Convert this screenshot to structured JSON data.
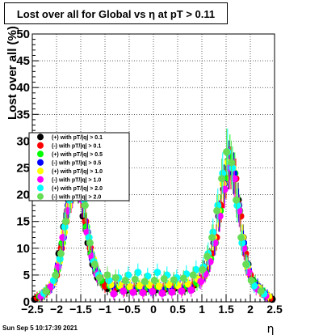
{
  "title": "Lost over all for Global vs    η at pT > 0.11",
  "timestamp": "Sun Sep  5 10:17:39 2021",
  "chart_data": {
    "type": "scatter",
    "title": "Lost over all for Global vs    η at pT > 0.11",
    "xlabel": "η",
    "ylabel": "Lost over all (%)",
    "xlim": [
      -2.5,
      2.5
    ],
    "ylim": [
      0,
      50
    ],
    "x_ticks": [
      "−2.5",
      "−2",
      "−1.5",
      "−1",
      "−0.5",
      "0",
      "0.5",
      "1",
      "1.5",
      "2",
      "2.5"
    ],
    "y_ticks": [
      "0",
      "5",
      "10",
      "15",
      "20",
      "25",
      "30",
      "35",
      "40",
      "45",
      "50"
    ],
    "grid": true,
    "legend_position": "middle-left",
    "series": [
      {
        "name": "(+) with pT/|q| > 0.1",
        "color": "#000000",
        "x": [
          -2.45,
          -2.25,
          -2.05,
          -1.95,
          -1.85,
          -1.75,
          -1.65,
          -1.55,
          -1.45,
          -1.35,
          -1.25,
          -1.15,
          -1.05,
          -0.95,
          -0.75,
          -0.55,
          -0.35,
          -0.15,
          0.05,
          0.25,
          0.45,
          0.65,
          0.85,
          0.95,
          1.05,
          1.15,
          1.25,
          1.35,
          1.45,
          1.55,
          1.65,
          1.75,
          1.85,
          1.95,
          2.05,
          2.25,
          2.45
        ],
        "y": [
          0.5,
          1.5,
          4,
          9,
          14,
          19,
          23,
          22,
          16,
          11,
          7,
          4.5,
          3.5,
          2.5,
          2.5,
          2.2,
          2.5,
          2.4,
          2.3,
          2.4,
          2.6,
          2.5,
          3.2,
          4,
          6,
          8,
          11,
          16,
          21,
          25,
          24,
          19,
          12,
          7,
          4,
          2,
          0.5
        ]
      },
      {
        "name": "(-) with pT/|q| > 0.1",
        "color": "#ff0000",
        "x": [
          -2.4,
          -2.2,
          -2.0,
          -1.9,
          -1.8,
          -1.7,
          -1.6,
          -1.5,
          -1.4,
          -1.3,
          -1.2,
          -1.1,
          -1.0,
          -0.8,
          -0.6,
          -0.4,
          -0.2,
          0.0,
          0.2,
          0.4,
          0.6,
          0.8,
          1.0,
          1.1,
          1.2,
          1.3,
          1.4,
          1.5,
          1.6,
          1.7,
          1.8,
          1.9,
          2.0,
          2.2,
          2.4
        ],
        "y": [
          0.8,
          2,
          5,
          10,
          15,
          20,
          23,
          21,
          15,
          10,
          6.5,
          4.5,
          3,
          2.6,
          2.3,
          2.4,
          2.2,
          2.5,
          2.3,
          2.5,
          2.4,
          3,
          4.5,
          6,
          9,
          12,
          18,
          23,
          25,
          23,
          16,
          9,
          5,
          2.2,
          0.6
        ]
      },
      {
        "name": "(+) with pT/|q| > 0.5",
        "color": "#00ff00",
        "x": [
          -2.35,
          -2.15,
          -1.98,
          -1.88,
          -1.78,
          -1.68,
          -1.58,
          -1.48,
          -1.38,
          -1.28,
          -1.18,
          -1.08,
          -0.9,
          -0.7,
          -0.5,
          -0.3,
          -0.1,
          0.1,
          0.3,
          0.5,
          0.7,
          0.9,
          1.08,
          1.18,
          1.28,
          1.38,
          1.48,
          1.58,
          1.68,
          1.78,
          1.88,
          2.1,
          2.3
        ],
        "y": [
          1,
          2.5,
          6,
          11,
          17,
          21,
          24,
          20,
          14,
          9,
          6,
          4,
          3,
          2.8,
          2.5,
          2.7,
          2.6,
          2.8,
          2.7,
          3,
          2.9,
          3.5,
          5.5,
          8,
          11,
          17,
          23,
          27,
          24,
          17,
          10,
          3.5,
          1.5
        ]
      },
      {
        "name": "(-) with pT/|q| > 0.5",
        "color": "#0000ff",
        "x": [
          -2.3,
          -2.1,
          -1.96,
          -1.86,
          -1.76,
          -1.66,
          -1.56,
          -1.46,
          -1.36,
          -1.26,
          -1.16,
          -0.85,
          -0.65,
          -0.45,
          -0.25,
          -0.05,
          0.15,
          0.35,
          0.55,
          0.75,
          0.95,
          1.06,
          1.16,
          1.26,
          1.36,
          1.46,
          1.56,
          1.66,
          1.76,
          1.86,
          1.96,
          2.15,
          2.35
        ],
        "y": [
          1.2,
          3,
          7,
          12,
          18,
          22,
          24,
          20,
          13,
          8,
          5.5,
          3,
          2.6,
          2.4,
          2.5,
          2.3,
          2.4,
          2.5,
          2.7,
          2.8,
          4,
          5.5,
          7.5,
          11,
          16,
          22,
          26,
          24,
          18,
          11,
          6,
          3,
          1.2
        ]
      },
      {
        "name": "(+) with pT/|q| > 1.0",
        "color": "#ffff00",
        "x": [
          -2.28,
          -2.08,
          -1.94,
          -1.84,
          -1.74,
          -1.64,
          -1.54,
          -1.44,
          -1.34,
          -1.24,
          -1.14,
          -0.88,
          -0.68,
          -0.48,
          -0.28,
          -0.08,
          0.12,
          0.32,
          0.52,
          0.72,
          0.92,
          1.04,
          1.14,
          1.24,
          1.34,
          1.44,
          1.54,
          1.64,
          1.74,
          1.84,
          1.94,
          2.18,
          2.38
        ],
        "y": [
          1.4,
          3.5,
          7.5,
          13,
          18,
          22,
          24,
          19,
          12,
          8,
          5,
          3.2,
          3,
          2.8,
          3,
          3.1,
          2.9,
          3.2,
          3,
          3.3,
          4.2,
          5.5,
          8,
          12,
          17,
          22,
          26,
          25,
          18,
          12,
          6.5,
          2.6,
          1
        ]
      },
      {
        "name": "(-) with pT/|q| > 1.0",
        "color": "#ff00ff",
        "x": [
          -2.32,
          -2.12,
          -1.97,
          -1.87,
          -1.77,
          -1.67,
          -1.57,
          -1.47,
          -1.37,
          -1.27,
          -1.17,
          -0.82,
          -0.62,
          -0.42,
          -0.22,
          -0.02,
          0.18,
          0.38,
          0.58,
          0.78,
          0.98,
          1.07,
          1.17,
          1.27,
          1.37,
          1.47,
          1.57,
          1.67,
          1.77,
          1.87,
          1.97,
          2.12,
          2.32
        ],
        "y": [
          1,
          2.8,
          6.5,
          12,
          17,
          21,
          23,
          19,
          13,
          8.5,
          5.2,
          1.5,
          2,
          1.8,
          1.7,
          1.9,
          1.6,
          1.8,
          2,
          2.2,
          3.8,
          5.2,
          7.5,
          11,
          16,
          21,
          25,
          23,
          17,
          10,
          5.5,
          2.5,
          1.1
        ]
      },
      {
        "name": "(+) with pT/|q| > 2.0",
        "color": "#00ffff",
        "x": [
          -2.26,
          -2.06,
          -1.93,
          -1.83,
          -1.73,
          -1.63,
          -1.53,
          -1.43,
          -1.33,
          -1.23,
          -1.13,
          -0.92,
          -0.72,
          -0.52,
          -0.32,
          -0.12,
          0.08,
          0.28,
          0.48,
          0.68,
          0.88,
          1.03,
          1.13,
          1.23,
          1.33,
          1.43,
          1.53,
          1.63,
          1.73,
          1.83,
          1.93,
          2.08,
          2.28
        ],
        "y": [
          1.6,
          4,
          8,
          14,
          19,
          23,
          24,
          19,
          12,
          7.5,
          5,
          4,
          4.5,
          5,
          5.5,
          4.8,
          5.5,
          5,
          4.5,
          5.2,
          6,
          6.5,
          9,
          13,
          18,
          24,
          28,
          25,
          18,
          11,
          7,
          3,
          1.5
        ]
      },
      {
        "name": "(-) with pT/|q| > 2.0",
        "color": "#66dd55",
        "x": [
          -2.22,
          -2.02,
          -1.91,
          -1.81,
          -1.71,
          -1.61,
          -1.51,
          -1.41,
          -1.31,
          -1.21,
          -1.11,
          -0.95,
          -0.78,
          -0.58,
          -0.38,
          -0.18,
          0.02,
          0.22,
          0.42,
          0.62,
          0.82,
          1.01,
          1.11,
          1.21,
          1.31,
          1.41,
          1.51,
          1.61,
          1.71,
          1.81,
          1.91,
          2.02,
          2.22
        ],
        "y": [
          2,
          5,
          9,
          15,
          20,
          23,
          23,
          18,
          11,
          7,
          4.5,
          5,
          4.5,
          4,
          4.2,
          3.8,
          4,
          4.3,
          4.1,
          4.4,
          5,
          6,
          8.5,
          12,
          17,
          23,
          28,
          26,
          19,
          12,
          7,
          4,
          2
        ]
      }
    ]
  }
}
